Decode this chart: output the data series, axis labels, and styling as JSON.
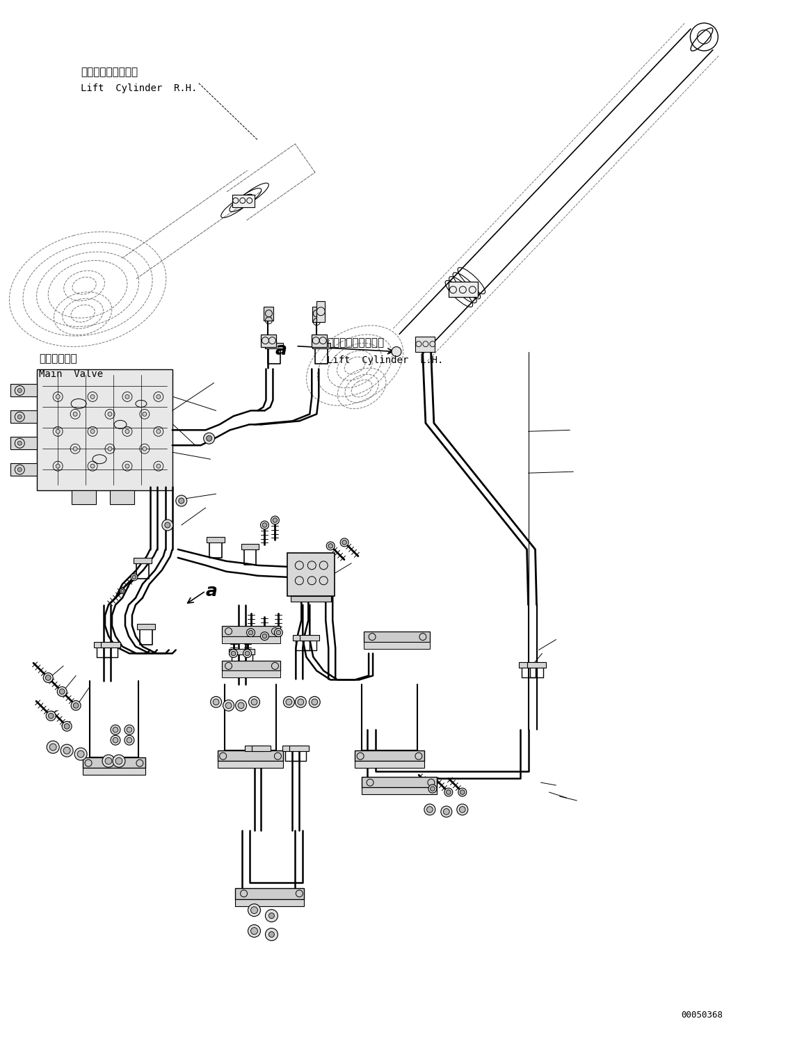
{
  "background_color": "#ffffff",
  "line_color": "#000000",
  "dashed_color": "#777777",
  "figure_width": 11.43,
  "figure_height": 14.91,
  "dpi": 100,
  "part_number": "00050368",
  "labels": {
    "lift_cyl_rh_jp": "リフトシリンダ　右",
    "lift_cyl_rh_en": "Lift  Cylinder  R.H.",
    "lift_cyl_lh_jp": "リフトシリンダ　左",
    "lift_cyl_lh_en": "Lift  Cylinder  L.H.",
    "main_valve_jp": "メインバルブ",
    "main_valve_en": "Main  Valve"
  }
}
